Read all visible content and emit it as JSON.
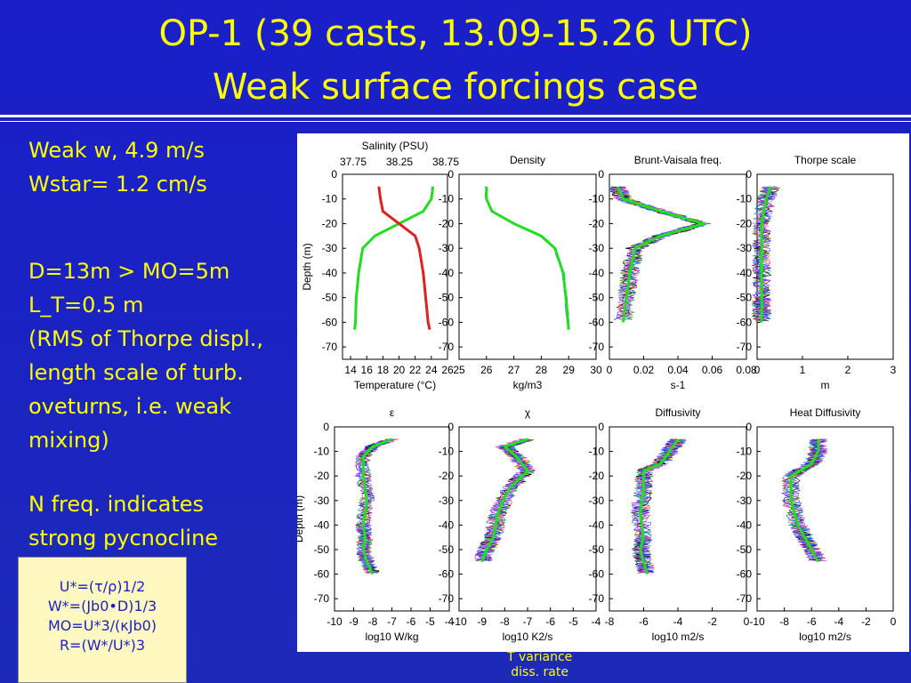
{
  "slide": {
    "title_line1": "OP-1 (39 casts, 13.09-15.26 UTC)",
    "title_line2": "Weak surface forcings case",
    "text_lines": [
      "Weak w, 4.9 m/s",
      "Wstar= 1.2 cm/s",
      "",
      "D=13m > MO=5m",
      "L_T=0.5 m",
      "(RMS of Thorpe displ.,",
      "length scale of turb.",
      "oveturns, i.e. weak",
      "mixing)",
      "",
      "N freq. indicates",
      "strong pycnocline"
    ],
    "formulas": [
      "U*=(τ/ρ)1/2",
      "W*=(Jb0•D)1/3",
      "MO=U*3/(κJb0)",
      "R=(W*/U*)3"
    ],
    "note": [
      "T variance",
      "diss. rate"
    ],
    "colors": {
      "background": "#1a1fc8",
      "text": "#ffff00",
      "mean_profile": "#22dd22"
    }
  },
  "chart_data": [
    {
      "type": "line",
      "title": "Salinity  (PSU)",
      "top_axis_ticks": [
        "37.75",
        "38.25",
        "38.75"
      ],
      "xlabel": "Temperature (°C)",
      "ylabel": "Depth (m)",
      "xlim": [
        13,
        26
      ],
      "ylim": [
        -75,
        0
      ],
      "xticks": [
        14,
        16,
        18,
        20,
        22,
        24,
        26
      ],
      "yticks": [
        0,
        -10,
        -20,
        -30,
        -40,
        -50,
        -60,
        -70
      ],
      "series": [
        {
          "name": "Temperature",
          "color": "#22dd22",
          "x": [
            24.2,
            24,
            23,
            20,
            17,
            15.5,
            15,
            14.7,
            14.6,
            14.5
          ],
          "y": [
            -5,
            -10,
            -15,
            -20,
            -25,
            -30,
            -40,
            -50,
            -60,
            -63
          ]
        },
        {
          "name": "Salinity",
          "color": "#dd2222",
          "x": [
            17.5,
            17.7,
            18,
            20,
            22,
            22.5,
            23,
            23.3,
            23.6,
            23.8
          ],
          "y": [
            -5,
            -10,
            -15,
            -20,
            -25,
            -30,
            -40,
            -50,
            -60,
            -63
          ]
        }
      ]
    },
    {
      "type": "line",
      "title": "Density",
      "xlabel": "kg/m3",
      "xlim": [
        25,
        30
      ],
      "ylim": [
        -75,
        0
      ],
      "xticks": [
        25,
        26,
        27,
        28,
        29,
        30
      ],
      "yticks": [
        0,
        -10,
        -20,
        -30,
        -40,
        -50,
        -60,
        -70
      ],
      "series": [
        {
          "color": "#22dd22",
          "x": [
            26,
            26,
            26.2,
            27,
            28,
            28.5,
            28.8,
            28.9,
            29
          ],
          "y": [
            -5,
            -10,
            -15,
            -20,
            -25,
            -30,
            -40,
            -50,
            -63
          ]
        }
      ]
    },
    {
      "type": "line",
      "title": "Brunt-Vaisala freq.",
      "xlabel": "s-1",
      "xlim": [
        0,
        0.08
      ],
      "ylim": [
        -75,
        0
      ],
      "xticks": [
        0,
        0.02,
        0.04,
        0.06,
        0.08
      ],
      "yticks": [
        0,
        -10,
        -20,
        -30,
        -40,
        -50,
        -60,
        -70
      ],
      "series": [
        {
          "color": "#22dd22",
          "x": [
            0.005,
            0.008,
            0.03,
            0.055,
            0.03,
            0.015,
            0.012,
            0.01,
            0.008
          ],
          "y": [
            -5,
            -10,
            -15,
            -20,
            -25,
            -30,
            -40,
            -50,
            -60
          ]
        }
      ]
    },
    {
      "type": "line",
      "title": "Thorpe scale",
      "xlabel": "m",
      "xlim": [
        0,
        3
      ],
      "ylim": [
        -75,
        0
      ],
      "xticks": [
        0,
        1,
        2,
        3
      ],
      "yticks": [
        0,
        -10,
        -20,
        -30,
        -40,
        -50,
        -60,
        -70
      ],
      "series": [
        {
          "color": "#22dd22",
          "x": [
            0.3,
            0.2,
            0.1,
            0.1,
            0.1,
            0.1,
            0.1,
            0.1
          ],
          "y": [
            -5,
            -10,
            -20,
            -30,
            -40,
            -50,
            -55,
            -60
          ]
        }
      ]
    },
    {
      "type": "line",
      "title": "ε",
      "xlabel": "log10 W/kg",
      "ylabel": "Depth (m)",
      "xlim": [
        -10,
        -4
      ],
      "ylim": [
        -75,
        0
      ],
      "xticks": [
        -10,
        -9,
        -8,
        -7,
        -6,
        -5,
        -4
      ],
      "yticks": [
        0,
        -10,
        -20,
        -30,
        -40,
        -50,
        -60,
        -70
      ],
      "series": [
        {
          "color": "#22dd22",
          "x": [
            -7,
            -8,
            -8.5,
            -8.5,
            -8.3,
            -8.5,
            -8.4,
            -8.5,
            -8.3,
            -8
          ],
          "y": [
            -5,
            -8,
            -12,
            -20,
            -30,
            -40,
            -45,
            -50,
            -55,
            -60
          ]
        }
      ]
    },
    {
      "type": "line",
      "title": "χ",
      "xlabel": "log10 K2/s",
      "xlim": [
        -10,
        -4
      ],
      "ylim": [
        -75,
        0
      ],
      "xticks": [
        -10,
        -9,
        -8,
        -7,
        -6,
        -5,
        -4
      ],
      "yticks": [
        0,
        -10,
        -20,
        -30,
        -40,
        -50,
        -60,
        -70
      ],
      "series": [
        {
          "color": "#22dd22",
          "x": [
            -7,
            -8,
            -7.5,
            -7,
            -7.8,
            -8.3,
            -8.5,
            -8.8,
            -9
          ],
          "y": [
            -5,
            -8,
            -12,
            -18,
            -25,
            -35,
            -45,
            -50,
            -55
          ]
        }
      ]
    },
    {
      "type": "line",
      "title": "Diffusivity",
      "xlabel": "log10 m2/s",
      "xlim": [
        -8,
        0
      ],
      "ylim": [
        -75,
        0
      ],
      "xticks": [
        -8,
        -6,
        -4,
        -2,
        0
      ],
      "yticks": [
        0,
        -10,
        -20,
        -30,
        -40,
        -50,
        -60,
        -70
      ],
      "series": [
        {
          "color": "#22dd22",
          "x": [
            -4,
            -4.5,
            -5,
            -6,
            -6,
            -6.2,
            -6,
            -6.2,
            -6,
            -5.8
          ],
          "y": [
            -5,
            -10,
            -15,
            -18,
            -25,
            -35,
            -45,
            -50,
            -55,
            -60
          ]
        }
      ]
    },
    {
      "type": "line",
      "title": "Heat Diffusivity",
      "xlabel": "log10 m2/s",
      "xlim": [
        -10,
        0
      ],
      "ylim": [
        -75,
        0
      ],
      "xticks": [
        -10,
        -8,
        -6,
        -4,
        -2,
        0
      ],
      "yticks": [
        0,
        -10,
        -20,
        -30,
        -40,
        -50,
        -60,
        -70
      ],
      "series": [
        {
          "color": "#22dd22",
          "x": [
            -5.5,
            -5.5,
            -6,
            -7.5,
            -7.5,
            -7,
            -6.5,
            -6,
            -5.5
          ],
          "y": [
            -5,
            -10,
            -15,
            -20,
            -30,
            -40,
            -45,
            -50,
            -55
          ]
        }
      ]
    }
  ]
}
